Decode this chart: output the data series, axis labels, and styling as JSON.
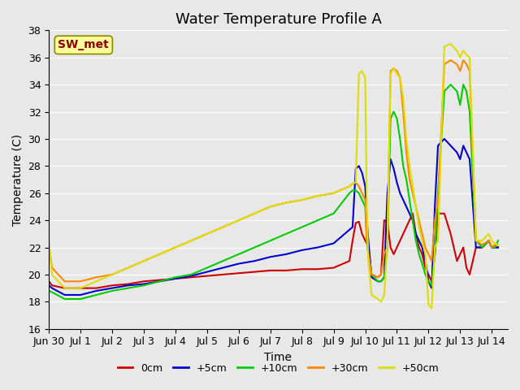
{
  "title": "Water Temperature Profile A",
  "xlabel": "Time",
  "ylabel": "Temperature (C)",
  "ylim": [
    16,
    38
  ],
  "yticks": [
    16,
    18,
    20,
    22,
    24,
    26,
    28,
    30,
    32,
    34,
    36,
    38
  ],
  "xlim": [
    0,
    14.5
  ],
  "xtick_labels": [
    "Jun 30",
    "Jul 1",
    "Jul 2",
    "Jul 3",
    "Jul 4",
    "Jul 5",
    "Jul 6",
    "Jul 7",
    "Jul 8",
    "Jul 9",
    "Jul 10",
    "Jul 11",
    "Jul 12",
    "Jul 13",
    "Jul 14"
  ],
  "xtick_pos": [
    0,
    1,
    2,
    3,
    4,
    5,
    6,
    7,
    8,
    9,
    10,
    11,
    12,
    13,
    14
  ],
  "background_color": "#e8e8e8",
  "plot_bg_color": "#e8e8e8",
  "grid_color": "#ffffff",
  "legend_label": "SW_met",
  "series": {
    "0cm": {
      "color": "#cc0000",
      "x": [
        0,
        0.1,
        0.5,
        1,
        1.5,
        2,
        2.5,
        3,
        3.5,
        4,
        4.5,
        5,
        5.5,
        6,
        6.5,
        7,
        7.5,
        8,
        8.5,
        9,
        9.5,
        9.6,
        9.7,
        9.8,
        9.9,
        10.0,
        10.05,
        10.1,
        10.2,
        10.4,
        10.5,
        10.6,
        10.7,
        10.8,
        10.9,
        11.0,
        11.1,
        11.2,
        11.3,
        11.4,
        11.5,
        11.6,
        11.7,
        11.8,
        11.9,
        12.0,
        12.1,
        12.2,
        12.3,
        12.5,
        12.7,
        12.9,
        13.0,
        13.1,
        13.2,
        13.3,
        13.5,
        13.7,
        13.9,
        14.0,
        14.1,
        14.2
      ],
      "y": [
        19.5,
        19.2,
        19.0,
        19.0,
        19.0,
        19.2,
        19.3,
        19.5,
        19.6,
        19.7,
        19.8,
        19.9,
        20.0,
        20.1,
        20.2,
        20.3,
        20.3,
        20.4,
        20.4,
        20.5,
        21.0,
        22.5,
        23.8,
        23.9,
        23.0,
        22.5,
        22.3,
        22.0,
        20.0,
        19.8,
        20.0,
        24.0,
        23.9,
        22.0,
        21.5,
        22.0,
        22.5,
        23.0,
        23.5,
        24.0,
        24.5,
        23.0,
        22.0,
        21.5,
        20.5,
        20.0,
        19.5,
        21.5,
        24.5,
        24.5,
        23.0,
        21.0,
        21.5,
        22.0,
        20.5,
        20.0,
        22.0,
        22.0,
        22.5,
        22.0,
        22.0,
        22.0
      ]
    },
    "+5cm": {
      "color": "#0000cc",
      "x": [
        0,
        0.1,
        0.5,
        1,
        1.5,
        2,
        2.5,
        3,
        3.5,
        4,
        4.5,
        5,
        5.5,
        6,
        6.5,
        7,
        7.5,
        8,
        8.5,
        9,
        9.5,
        9.6,
        9.7,
        9.8,
        9.9,
        10.0,
        10.05,
        10.1,
        10.2,
        10.4,
        10.5,
        10.6,
        10.7,
        10.8,
        10.9,
        11.0,
        11.1,
        11.2,
        11.3,
        11.4,
        11.5,
        11.6,
        11.7,
        11.8,
        11.9,
        12.0,
        12.1,
        12.2,
        12.3,
        12.5,
        12.7,
        12.9,
        13.0,
        13.1,
        13.2,
        13.3,
        13.5,
        13.7,
        13.9,
        14.0,
        14.1,
        14.2
      ],
      "y": [
        19.2,
        19.0,
        18.5,
        18.5,
        18.8,
        19.0,
        19.2,
        19.3,
        19.5,
        19.7,
        19.9,
        20.2,
        20.5,
        20.8,
        21.0,
        21.3,
        21.5,
        21.8,
        22.0,
        22.3,
        23.3,
        23.5,
        27.8,
        28.0,
        27.5,
        26.5,
        24.0,
        22.5,
        19.8,
        19.5,
        19.5,
        19.8,
        26.0,
        28.5,
        27.8,
        26.8,
        26.0,
        25.5,
        25.0,
        24.5,
        24.0,
        23.0,
        22.5,
        22.0,
        21.0,
        19.5,
        19.0,
        25.0,
        29.5,
        30.0,
        29.5,
        29.0,
        28.5,
        29.5,
        29.0,
        28.5,
        22.0,
        22.0,
        22.5,
        22.0,
        22.0,
        22.0
      ]
    },
    "+10cm": {
      "color": "#00cc00",
      "x": [
        0,
        0.1,
        0.5,
        1,
        1.5,
        2,
        2.5,
        3,
        3.5,
        4,
        4.5,
        5,
        5.5,
        6,
        6.5,
        7,
        7.5,
        8,
        8.5,
        9,
        9.5,
        9.6,
        9.7,
        9.8,
        9.9,
        10.0,
        10.05,
        10.1,
        10.2,
        10.4,
        10.5,
        10.6,
        10.7,
        10.8,
        10.9,
        11.0,
        11.1,
        11.2,
        11.3,
        11.4,
        11.5,
        11.6,
        11.7,
        11.8,
        11.9,
        12.0,
        12.1,
        12.2,
        12.3,
        12.5,
        12.7,
        12.9,
        13.0,
        13.1,
        13.2,
        13.3,
        13.5,
        13.7,
        13.9,
        14.0,
        14.1,
        14.2
      ],
      "y": [
        18.8,
        18.7,
        18.2,
        18.2,
        18.5,
        18.8,
        19.0,
        19.2,
        19.5,
        19.8,
        20.0,
        20.5,
        21.0,
        21.5,
        22.0,
        22.5,
        23.0,
        23.5,
        24.0,
        24.5,
        26.0,
        26.2,
        26.2,
        26.0,
        25.5,
        25.0,
        22.5,
        21.5,
        20.0,
        19.5,
        19.5,
        19.8,
        22.0,
        31.5,
        32.0,
        31.5,
        30.0,
        28.0,
        27.0,
        25.5,
        24.0,
        22.5,
        21.5,
        20.8,
        20.0,
        19.5,
        19.2,
        21.5,
        26.0,
        33.5,
        34.0,
        33.5,
        32.5,
        34.0,
        33.5,
        32.0,
        22.5,
        22.0,
        22.5,
        22.0,
        22.0,
        22.5
      ]
    },
    "+30cm": {
      "color": "#ff8800",
      "x": [
        0,
        0.1,
        0.5,
        1,
        1.5,
        2,
        2.5,
        3,
        3.5,
        4,
        4.5,
        5,
        5.5,
        6,
        6.5,
        7,
        7.5,
        8,
        8.5,
        9,
        9.5,
        9.6,
        9.7,
        9.8,
        9.9,
        10.0,
        10.05,
        10.1,
        10.2,
        10.4,
        10.5,
        10.6,
        10.7,
        10.8,
        10.9,
        11.0,
        11.1,
        11.2,
        11.3,
        11.4,
        11.5,
        11.6,
        11.7,
        11.8,
        11.9,
        12.0,
        12.1,
        12.2,
        12.3,
        12.5,
        12.7,
        12.9,
        13.0,
        13.1,
        13.2,
        13.3,
        13.5,
        13.7,
        13.9,
        14.0,
        14.1,
        14.2
      ],
      "y": [
        22.2,
        20.5,
        19.5,
        19.5,
        19.8,
        20.0,
        20.5,
        21.0,
        21.5,
        22.0,
        22.5,
        23.0,
        23.5,
        24.0,
        24.5,
        25.0,
        25.3,
        25.5,
        25.8,
        26.0,
        26.5,
        26.7,
        26.8,
        26.5,
        26.0,
        25.5,
        22.5,
        21.5,
        20.0,
        19.8,
        20.0,
        21.5,
        22.0,
        35.0,
        35.2,
        35.0,
        34.5,
        32.0,
        29.0,
        27.0,
        26.0,
        25.0,
        24.0,
        23.0,
        22.0,
        21.5,
        21.0,
        24.0,
        25.5,
        35.5,
        35.8,
        35.5,
        35.0,
        35.8,
        35.5,
        35.0,
        22.5,
        22.2,
        22.5,
        22.0,
        22.2,
        22.2
      ]
    },
    "+50cm": {
      "color": "#dddd00",
      "x": [
        0,
        0.1,
        0.5,
        1,
        1.5,
        2,
        2.5,
        3,
        3.5,
        4,
        4.5,
        5,
        5.5,
        6,
        6.5,
        7,
        7.5,
        8,
        8.5,
        9,
        9.5,
        9.6,
        9.7,
        9.8,
        9.9,
        10.0,
        10.05,
        10.1,
        10.2,
        10.4,
        10.5,
        10.6,
        10.7,
        10.8,
        10.9,
        11.0,
        11.1,
        11.2,
        11.3,
        11.4,
        11.5,
        11.6,
        11.7,
        11.8,
        11.9,
        12.0,
        12.1,
        12.2,
        12.3,
        12.5,
        12.7,
        12.9,
        13.0,
        13.1,
        13.2,
        13.3,
        13.5,
        13.7,
        13.9,
        14.0,
        14.1,
        14.2
      ],
      "y": [
        22.5,
        20.0,
        19.0,
        19.0,
        19.5,
        20.0,
        20.5,
        21.0,
        21.5,
        22.0,
        22.5,
        23.0,
        23.5,
        24.0,
        24.5,
        25.0,
        25.3,
        25.5,
        25.8,
        26.0,
        26.5,
        26.7,
        26.8,
        34.8,
        35.0,
        34.5,
        25.0,
        21.0,
        18.5,
        18.2,
        18.0,
        18.5,
        22.5,
        34.8,
        35.2,
        34.8,
        34.5,
        33.0,
        30.0,
        28.0,
        26.5,
        25.0,
        23.5,
        22.5,
        21.5,
        17.8,
        17.5,
        22.0,
        22.5,
        36.8,
        37.0,
        36.5,
        36.0,
        36.5,
        36.2,
        36.0,
        22.5,
        22.5,
        23.0,
        22.5,
        22.3,
        22.2
      ]
    }
  },
  "line_width": 1.5,
  "title_fontsize": 13,
  "axis_label_fontsize": 10,
  "tick_fontsize": 9,
  "legend_fontsize": 9,
  "annotation_text": "SW_met",
  "annotation_color": "#8b0000",
  "annotation_bg": "#ffff99",
  "annotation_border": "#888800"
}
